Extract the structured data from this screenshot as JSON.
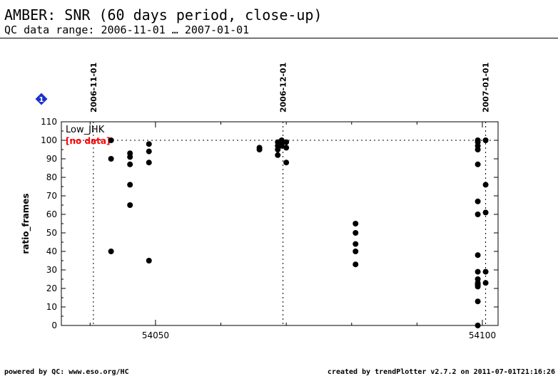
{
  "header": {
    "title": "AMBER: SNR (60 days period, close-up)",
    "subtitle": "QC data range: 2006-11-01 … 2007-01-01"
  },
  "footer": {
    "left": "powered by QC: www.eso.org/HC",
    "right": "created by trendPlotter v2.7.2 on 2011-07-01T21:16:26"
  },
  "badge": {
    "label": "1",
    "color": "#1a33cc"
  },
  "colors": {
    "points": "#000000",
    "no_data": "#ff0000"
  },
  "chart_data": {
    "type": "scatter",
    "title": "AMBER: SNR (60 days period, close-up)",
    "ylabel": "ratio_frames",
    "xlim": [
      54035.6,
      54102.4
    ],
    "ylim": [
      0,
      110
    ],
    "x_ticks": [
      54050,
      54100
    ],
    "x_tick_labels": [
      "54050",
      "54100"
    ],
    "y_ticks": [
      0,
      10,
      20,
      30,
      40,
      50,
      60,
      70,
      80,
      90,
      100,
      110
    ],
    "y_tick_labels": [
      "0",
      "10",
      "20",
      "30",
      "40",
      "50",
      "60",
      "70",
      "80",
      "90",
      "100",
      "110"
    ],
    "date_markers": [
      {
        "x": 54040.5,
        "label": "2006-11-01"
      },
      {
        "x": 54069.5,
        "label": "2006-12-01"
      },
      {
        "x": 54100.5,
        "label": "2007-01-01"
      }
    ],
    "reference_line_y": 100,
    "panel_label": "Low_JHK",
    "no_data_label": "[no data]",
    "series": [
      {
        "name": "Low_JHK",
        "x": [
          54043.2,
          54043.2,
          54043.2,
          54046.1,
          54046.1,
          54046.1,
          54046.1,
          54046.1,
          54049.0,
          54049.0,
          54049.0,
          54049.0,
          54065.9,
          54065.9,
          54068.7,
          54068.7,
          54068.7,
          54068.7,
          54069.3,
          54069.3,
          54069.3,
          54069.3,
          54070.0,
          54070.0,
          54070.0,
          54080.6,
          54080.6,
          54080.6,
          54080.6,
          54080.6,
          54099.3,
          54099.3,
          54099.3,
          54099.3,
          54099.3,
          54099.3,
          54099.3,
          54099.3,
          54099.3,
          54099.3,
          54099.3,
          54099.3,
          54099.3,
          54099.3,
          54099.3,
          54099.3,
          54100.5,
          54100.5,
          54100.5,
          54100.5,
          54100.5
        ],
        "y": [
          100,
          90,
          40,
          93,
          91,
          87,
          76,
          65,
          98,
          94,
          88,
          35,
          96,
          95,
          99,
          97,
          95,
          92,
          100,
          99,
          98,
          97,
          99,
          96,
          88,
          55,
          50,
          44,
          40,
          33,
          100,
          99,
          97,
          95,
          87,
          67,
          60,
          38,
          29,
          25,
          23,
          22,
          22,
          21,
          13,
          0,
          100,
          76,
          61,
          29,
          23
        ]
      }
    ],
    "grid": false,
    "legend": "none"
  }
}
